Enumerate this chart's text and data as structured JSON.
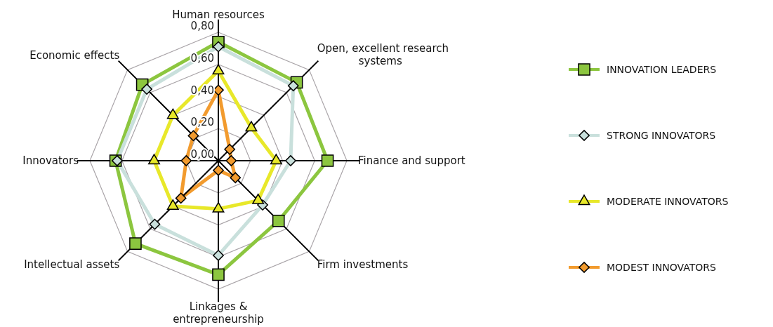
{
  "chart_data": {
    "type": "radar",
    "categories": [
      "Human resources",
      "Open, excellent research systems",
      "Finance and support",
      "Firm investments",
      "Linkages & entrepreneurship",
      "Intellectual assets",
      "Innovators",
      "Economic effects"
    ],
    "ylim": [
      0,
      0.8
    ],
    "yticks": [
      {
        "value": 0,
        "label": "0,00"
      },
      {
        "value": 0.2,
        "label": "0,20"
      },
      {
        "value": 0.4,
        "label": "0,40"
      },
      {
        "value": 0.6,
        "label": "0,60"
      },
      {
        "value": 0.8,
        "label": "0,80"
      }
    ],
    "grid": true,
    "legend": "right",
    "series": [
      {
        "name": "INNOVATION LEADERS",
        "color": "#8cc63f",
        "marker": "square",
        "values": [
          0.74,
          0.69,
          0.68,
          0.53,
          0.71,
          0.73,
          0.64,
          0.67
        ]
      },
      {
        "name": "STRONG INNOVATORS",
        "color": "#c9e0dc",
        "marker": "diamond",
        "values": [
          0.71,
          0.66,
          0.45,
          0.39,
          0.59,
          0.56,
          0.63,
          0.63
        ]
      },
      {
        "name": "MODERATE INNOVATORS",
        "color": "#e8e82a",
        "marker": "triangle",
        "values": [
          0.56,
          0.29,
          0.36,
          0.35,
          0.3,
          0.4,
          0.4,
          0.4
        ]
      },
      {
        "name": "MODEST INNOVATORS",
        "color": "#f29b2e",
        "marker": "diamond",
        "values": [
          0.44,
          0.1,
          0.08,
          0.15,
          0.06,
          0.33,
          0.2,
          0.22
        ]
      }
    ]
  }
}
